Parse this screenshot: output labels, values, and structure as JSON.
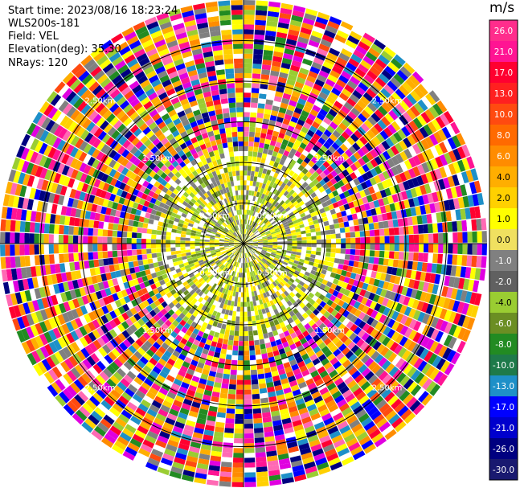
{
  "header": {
    "start_time": "Start time: 2023/08/16 18:23:24",
    "instrument": "WLS200s-181",
    "field": "Field: VEL",
    "elevation": "Elevation(deg): 35.30",
    "nrays": "NRays: 120"
  },
  "colorbar": {
    "unit": "m/s",
    "ticks": [
      "26.0",
      "21.0",
      "17.0",
      "13.0",
      "10.0",
      "8.0",
      "6.0",
      "4.0",
      "2.0",
      "1.0",
      "0.0",
      "-1.0",
      "-2.0",
      "-4.0",
      "-6.0",
      "-8.0",
      "-10.0",
      "-13.0",
      "-17.0",
      "-21.0",
      "-26.0",
      "-30.0"
    ],
    "colors": [
      "#ff2d8c",
      "#ff1493",
      "#ff0030",
      "#ff2020",
      "#ff4a10",
      "#ff6a00",
      "#ff8c00",
      "#ffae00",
      "#ffd000",
      "#ffff00",
      "#f0e060",
      "#808080",
      "#606060",
      "#9acd32",
      "#6b8e23",
      "#228b22",
      "#1e7a4a",
      "#1e90c8",
      "#0000ff",
      "#0000cd",
      "#000080",
      "#191970"
    ]
  },
  "chart_data": {
    "type": "heatmap",
    "title": "",
    "projection": "polar PPI",
    "rays": 120,
    "field": "VEL",
    "range_rings_km": [
      0.5,
      1.0,
      1.5,
      2.0,
      2.5
    ],
    "ring_labels": {
      "0.5": "0.50km",
      "1.0": "1.00km",
      "1.5": "1.50km",
      "2.0": "2.00km",
      "2.5": "2.50km"
    },
    "data_extent_km": 3.0,
    "noise_beyond_km": 1.2,
    "inner_region": {
      "dominant_values_ms": [
        2.0,
        1.0,
        0.0,
        -2.0,
        -4.0
      ],
      "note": "valid returns within about 1.2 km"
    }
  }
}
